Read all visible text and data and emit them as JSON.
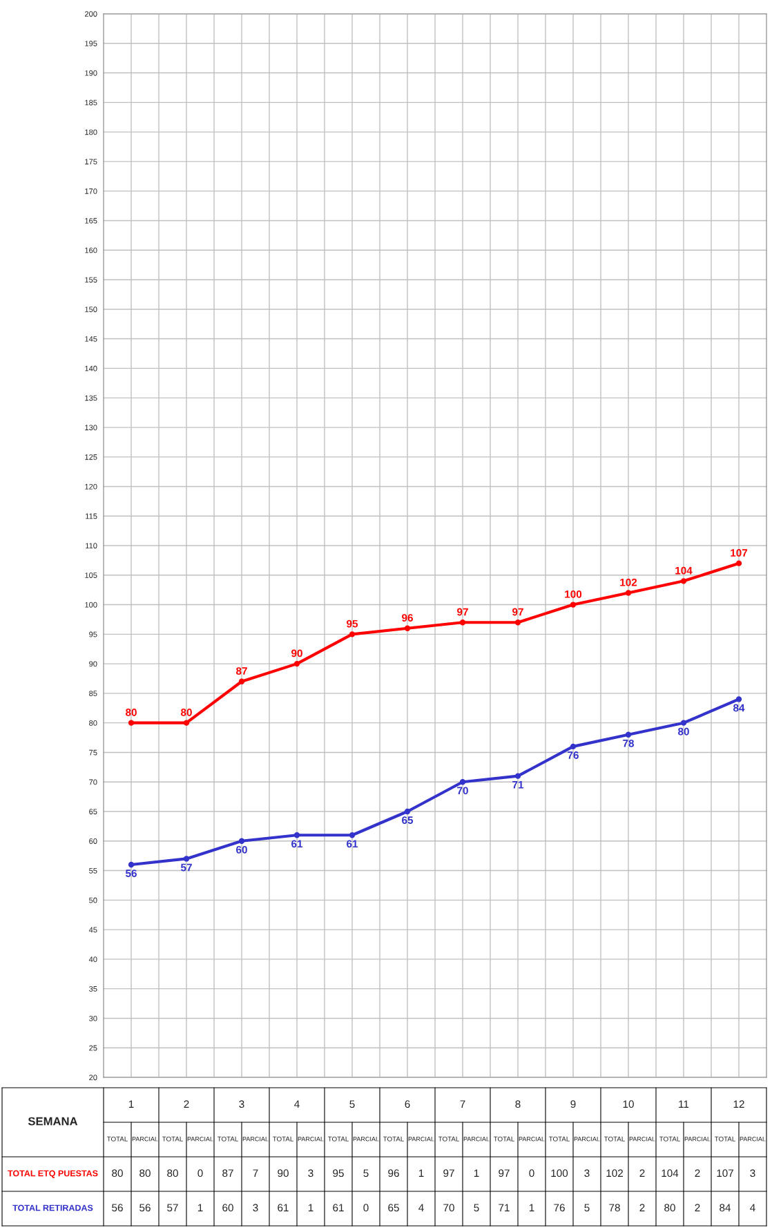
{
  "chart_data": {
    "type": "line",
    "xlabel": "SEMANA",
    "categories": [
      "1",
      "2",
      "3",
      "4",
      "5",
      "6",
      "7",
      "8",
      "9",
      "10",
      "11",
      "12"
    ],
    "series": [
      {
        "name": "TOTAL ETQ PUESTAS",
        "color": "#ff0000",
        "values": [
          80,
          80,
          87,
          90,
          95,
          96,
          97,
          97,
          100,
          102,
          104,
          107
        ]
      },
      {
        "name": "TOTAL RETIRADAS",
        "color": "#3333cc",
        "values": [
          56,
          57,
          60,
          61,
          61,
          65,
          70,
          71,
          76,
          78,
          80,
          84
        ]
      }
    ],
    "annotations": [
      "TOTAL",
      "PARCIAL",
      "80",
      "80",
      "87",
      "90",
      "95",
      "96",
      "97",
      "97",
      "100",
      "102",
      "104",
      "107",
      "80",
      "0",
      "7",
      "3",
      "5",
      "1",
      "1",
      "0",
      "3",
      "2",
      "2",
      "3",
      "56",
      "57",
      "60",
      "61",
      "61",
      "65",
      "70",
      "71",
      "76",
      "78",
      "80",
      "84",
      "56",
      "1",
      "3",
      "1",
      "0",
      "4",
      "5",
      "1",
      "5",
      "2",
      "2",
      "4"
    ],
    "ylim": [
      20,
      200
    ],
    "yticks": [
      20,
      25,
      30,
      35,
      40,
      45,
      50,
      55,
      60,
      65,
      70,
      75,
      80,
      85,
      90,
      95,
      100,
      105,
      110,
      115,
      120,
      125,
      130,
      135,
      140,
      145,
      150,
      155,
      160,
      165,
      170,
      175,
      180,
      185,
      190,
      195,
      200
    ],
    "grid": true,
    "marker": "circle",
    "line_style": "solid",
    "data_labels": true,
    "tick_labels": "y",
    "legend": false
  }
}
